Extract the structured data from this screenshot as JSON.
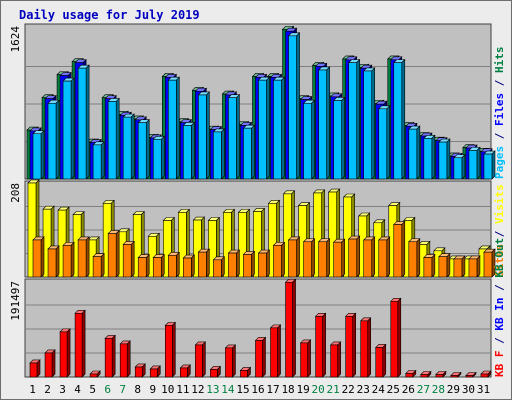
{
  "chart_data": {
    "type": "bar",
    "title": "Daily usage for July 2019",
    "categories": [
      "1",
      "2",
      "3",
      "4",
      "5",
      "6",
      "7",
      "8",
      "9",
      "10",
      "11",
      "12",
      "13",
      "14",
      "15",
      "16",
      "17",
      "18",
      "19",
      "20",
      "21",
      "22",
      "23",
      "24",
      "25",
      "26",
      "27",
      "28",
      "29",
      "30",
      "31"
    ],
    "weekend_days": [
      "6",
      "7",
      "13",
      "14",
      "20",
      "21",
      "27",
      "28"
    ],
    "panels": [
      {
        "id": "top",
        "axis_label": "1624",
        "ylim": [
          0,
          1624
        ],
        "legend": [
          {
            "text": "Pages",
            "color": "#00c0ff"
          },
          {
            "text": " / ",
            "color": "#000080"
          },
          {
            "text": "Files",
            "color": "#0000ff"
          },
          {
            "text": " / ",
            "color": "#000080"
          },
          {
            "text": "Hits",
            "color": "#008040"
          }
        ],
        "series": [
          {
            "name": "Hits",
            "color": "#008040",
            "values": [
              530,
              880,
              1130,
              1270,
              400,
              880,
              700,
              650,
              450,
              1110,
              620,
              960,
              540,
              920,
              590,
              1110,
              1110,
              1620,
              870,
              1230,
              900,
              1300,
              1210,
              820,
              1300,
              580,
              470,
              420,
              250,
              340,
              300
            ]
          },
          {
            "name": "Files",
            "color": "#0000ff",
            "values": [
              520,
              870,
              1120,
              1260,
              395,
              870,
              690,
              640,
              445,
              1100,
              610,
              950,
              535,
              910,
              580,
              1100,
              1100,
              1600,
              860,
              1220,
              890,
              1290,
              1200,
              810,
              1290,
              570,
              465,
              415,
              245,
              335,
              295
            ]
          },
          {
            "name": "Pages",
            "color": "#00c0ff",
            "values": [
              490,
              820,
              1060,
              1200,
              370,
              840,
              670,
              610,
              430,
              1070,
              580,
              910,
              510,
              880,
              550,
              1070,
              1070,
              1550,
              820,
              1180,
              850,
              1260,
              1170,
              760,
              1260,
              540,
              440,
              400,
              230,
              310,
              270
            ]
          }
        ]
      },
      {
        "id": "mid",
        "axis_label": "208",
        "ylim": [
          0,
          208
        ],
        "legend": [
          {
            "text": "Sites",
            "color": "#ff8000"
          },
          {
            "text": " / ",
            "color": "#000080"
          },
          {
            "text": "Visits",
            "color": "#ffff00"
          }
        ],
        "series": [
          {
            "name": "Visits",
            "color": "#ffff00",
            "values": [
              208,
              150,
              148,
              138,
              82,
              163,
              100,
              138,
              90,
              125,
              143,
              126,
              125,
              143,
              143,
              145,
              163,
              184,
              158,
              186,
              188,
              177,
              135,
              120,
              158,
              125,
              72,
              58,
              40,
              40,
              62
            ]
          },
          {
            "name": "Sites",
            "color": "#ff8000",
            "values": [
              82,
              62,
              70,
              82,
              45,
              96,
              72,
              43,
              43,
              48,
              42,
              55,
              38,
              53,
              50,
              53,
              70,
              82,
              78,
              78,
              77,
              84,
              82,
              82,
              116,
              78,
              43,
              45,
              40,
              40,
              55
            ]
          }
        ]
      },
      {
        "id": "bot",
        "axis_label": "191497",
        "ylim": [
          0,
          191497
        ],
        "legend": [
          {
            "text": "KB F",
            "color": "#ff0000"
          },
          {
            "text": " / ",
            "color": "#000080"
          },
          {
            "text": "KB In",
            "color": "#0000ff"
          },
          {
            "text": " / ",
            "color": "#000080"
          },
          {
            "text": "KB Out",
            "color": "#008040"
          }
        ],
        "series": [
          {
            "name": "KB F",
            "color": "#ff0000",
            "values": [
              28000,
              48000,
              90000,
              127000,
              6000,
              77000,
              66000,
              20000,
              16000,
              103000,
              18000,
              64000,
              15000,
              58000,
              13000,
              73000,
              98000,
              189000,
              68000,
              121000,
              64000,
              121000,
              112000,
              59000,
              151000,
              7000,
              5000,
              5000,
              3000,
              3000,
              6000
            ]
          }
        ]
      }
    ],
    "grid": true
  }
}
